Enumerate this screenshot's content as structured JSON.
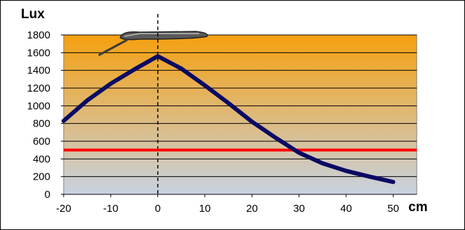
{
  "chart_data": {
    "type": "line",
    "title": "",
    "ylabel": "Lux",
    "xlabel": "cm",
    "xlim": [
      -20,
      55
    ],
    "ylim": [
      0,
      1800
    ],
    "x_ticks": [
      "-20",
      "-10",
      "0",
      "10",
      "20",
      "30",
      "40",
      "50"
    ],
    "y_ticks": [
      "0",
      "200",
      "400",
      "600",
      "800",
      "1000",
      "1200",
      "1400",
      "1600",
      "1800"
    ],
    "grid": "horizontal",
    "series": [
      {
        "x": [
          -20,
          -15,
          -10,
          -5,
          0,
          5,
          10,
          15,
          20,
          25,
          30,
          35,
          40,
          45,
          50
        ],
        "y": [
          830,
          1060,
          1250,
          1410,
          1560,
          1420,
          1230,
          1030,
          820,
          640,
          470,
          350,
          265,
          200,
          140
        ],
        "color": "#0a0a64"
      }
    ],
    "reference_line": {
      "y": 500,
      "color": "#ff0000"
    },
    "marker_line": {
      "x": 0,
      "style": "dashed",
      "color": "#000000"
    },
    "background_gradient": [
      "#f5a00f",
      "#c8d2e1"
    ]
  }
}
